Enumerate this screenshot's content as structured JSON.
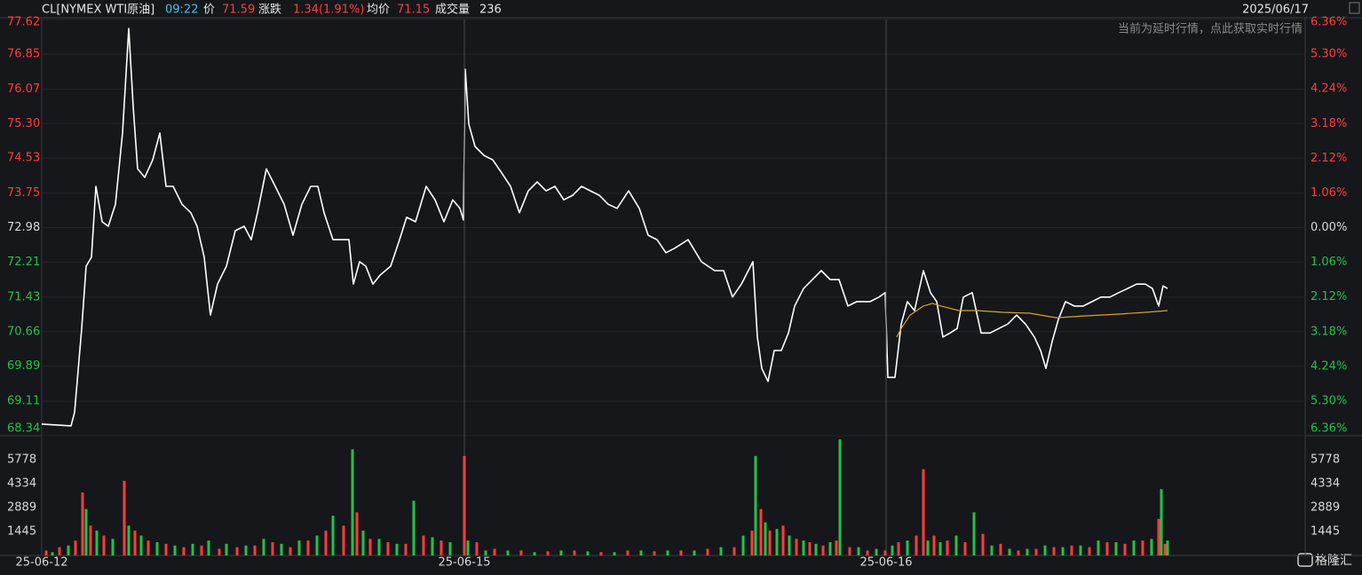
{
  "quote": {
    "symbol": "CL[NYMEX WTI原油]",
    "time": "09:22",
    "price_label": "价",
    "price": 71.59,
    "change_label": "涨跌",
    "change": "1.34(1.91%)",
    "avg_label": "均价",
    "avg": 71.15,
    "volume_label": "成交量",
    "volume": 236
  },
  "date": "2025/06/17",
  "notice": "当前为延时行情，点此获取实时行情",
  "logo": "格隆汇",
  "up_color": "#ff3c3c",
  "down_color": "#22c24a",
  "flat_color": "#d8d8d8",
  "chart_data": [
    {
      "type": "line",
      "xlim": [
        0,
        1423
      ],
      "ylim": [
        68.34,
        77.62
      ],
      "yticks": [
        77.62,
        76.85,
        76.07,
        {
          "value": 75.3,
          "label": "75.30"
        },
        74.53,
        73.75,
        72.98,
        72.21,
        71.43,
        70.66,
        69.89,
        69.11,
        68.34
      ],
      "y2lim": [
        -6.36,
        6.36
      ],
      "y2ticks": [
        {
          "value": 6.36,
          "label": "6.36%"
        },
        {
          "value": 5.3,
          "label": "5.30%"
        },
        {
          "value": 4.24,
          "label": "4.24%"
        },
        {
          "value": 3.18,
          "label": "3.18%"
        },
        {
          "value": 2.12,
          "label": "2.12%"
        },
        {
          "value": 1.06,
          "label": "1.06%"
        },
        {
          "value": 0,
          "label": "0.00%"
        },
        {
          "value": -1.06,
          "label": "1.06%"
        },
        {
          "value": -2.12,
          "label": "2.12%"
        },
        {
          "value": -3.18,
          "label": "3.18%"
        },
        {
          "value": -4.24,
          "label": "4.24%"
        },
        {
          "value": -5.3,
          "label": "5.30%"
        },
        {
          "value": -6.36,
          "label": "6.36%"
        }
      ],
      "grid": true,
      "series": [
        {
          "color": "#ffffff",
          "x": [
            0,
            33,
            37,
            45,
            50,
            56,
            61,
            68,
            75,
            83,
            91,
            98,
            103,
            108,
            116,
            125,
            133,
            140,
            148,
            158,
            168,
            175,
            183,
            190,
            198,
            208,
            218,
            228,
            236,
            243,
            253,
            263,
            273,
            283,
            293,
            303,
            311,
            318,
            328,
            338,
            346,
            351,
            358,
            365,
            373,
            381,
            393,
            403,
            411,
            421,
            433,
            443,
            453,
            463,
            471,
            475,
            477,
            481,
            488,
            498,
            508,
            518,
            528,
            538,
            548,
            558,
            568,
            578,
            588,
            598,
            608,
            618,
            628,
            638,
            648,
            661,
            673,
            683,
            693,
            703,
            713,
            728,
            743,
            758,
            768,
            778,
            788,
            801,
            806,
            811,
            818,
            825,
            833,
            841,
            848,
            858,
            868,
            878,
            888,
            898,
            908,
            918,
            933,
            943,
            950,
            953,
            961,
            968,
            975,
            983,
            993,
            1001,
            1008,
            1015,
            1023,
            1031,
            1038,
            1048,
            1058,
            1068,
            1078,
            1088,
            1098,
            1108,
            1118,
            1125,
            1131,
            1138,
            1145,
            1153,
            1163,
            1173,
            1183,
            1193,
            1203,
            1213,
            1223,
            1233,
            1243,
            1251,
            1258,
            1263,
            1268
          ],
          "values": [
            68.6,
            68.56,
            68.86,
            70.73,
            72.12,
            72.32,
            73.9,
            73.11,
            73.01,
            73.5,
            75.09,
            77.42,
            75.68,
            74.29,
            74.1,
            74.49,
            75.09,
            73.9,
            73.9,
            73.5,
            73.31,
            73.01,
            72.32,
            71.03,
            71.72,
            72.12,
            72.91,
            73.01,
            72.71,
            73.31,
            74.29,
            73.9,
            73.5,
            72.81,
            73.5,
            73.9,
            73.9,
            73.31,
            72.71,
            72.71,
            72.71,
            71.72,
            72.22,
            72.12,
            71.72,
            71.92,
            72.12,
            72.71,
            73.21,
            73.11,
            73.9,
            73.6,
            73.11,
            73.6,
            73.41,
            73.15,
            76.51,
            75.29,
            74.79,
            74.59,
            74.49,
            74.2,
            73.9,
            73.31,
            73.8,
            74.0,
            73.8,
            73.9,
            73.6,
            73.7,
            73.9,
            73.8,
            73.7,
            73.5,
            73.41,
            73.8,
            73.41,
            72.81,
            72.71,
            72.42,
            72.52,
            72.71,
            72.22,
            72.02,
            72.02,
            71.43,
            71.72,
            72.22,
            70.54,
            69.84,
            69.55,
            70.24,
            70.24,
            70.63,
            71.23,
            71.62,
            71.82,
            72.02,
            71.82,
            71.82,
            71.23,
            71.33,
            71.33,
            71.43,
            71.53,
            69.64,
            69.64,
            70.83,
            71.33,
            71.13,
            72.02,
            71.53,
            71.33,
            70.54,
            70.63,
            70.73,
            71.43,
            71.53,
            70.63,
            70.63,
            70.73,
            70.83,
            71.03,
            70.83,
            70.54,
            70.24,
            69.84,
            70.44,
            70.93,
            71.33,
            71.23,
            71.23,
            71.33,
            71.43,
            71.43,
            71.53,
            71.62,
            71.72,
            71.72,
            71.62,
            71.23,
            71.68,
            71.62
          ]
        },
        {
          "color": "#d9a32a",
          "x": [
            963,
            968,
            978,
            993,
            1003,
            1013,
            1033,
            1053,
            1083,
            1113,
            1143,
            1173,
            1213,
            1243,
            1268
          ],
          "values": [
            70.54,
            70.73,
            71.03,
            71.23,
            71.29,
            71.23,
            71.13,
            71.13,
            71.09,
            71.07,
            70.97,
            71.01,
            71.05,
            71.09,
            71.13
          ]
        }
      ]
    },
    {
      "type": "bar",
      "xlim": [
        0,
        1423
      ],
      "ylim": [
        0,
        7222
      ],
      "yticks": [
        1445,
        2889,
        4334,
        5778
      ],
      "xticks": [
        {
          "value": 0,
          "label": "25-06-12"
        },
        {
          "value": 476,
          "label": "25-06-15"
        },
        {
          "value": 951,
          "label": "25-06-16"
        }
      ],
      "series": [
        {
          "color": "#ff3c3c",
          "x": [
            5,
            20,
            38,
            46,
            55,
            70,
            93,
            105,
            120,
            140,
            160,
            180,
            200,
            220,
            240,
            260,
            280,
            300,
            320,
            340,
            355,
            370,
            390,
            410,
            430,
            450,
            476,
            490,
            510,
            540,
            570,
            600,
            630,
            660,
            690,
            720,
            750,
            780,
            800,
            810,
            820,
            835,
            850,
            865,
            880,
            895,
            910,
            930,
            950,
            965,
            985,
            993,
            1005,
            1020,
            1040,
            1060,
            1080,
            1100,
            1120,
            1140,
            1160,
            1180,
            1200,
            1220,
            1240,
            1258,
            1265
          ],
          "values": [
            300,
            500,
            900,
            3800,
            1800,
            1200,
            4500,
            1500,
            900,
            700,
            500,
            600,
            400,
            500,
            600,
            800,
            500,
            900,
            1500,
            1800,
            2600,
            1000,
            800,
            700,
            1200,
            900,
            6000,
            800,
            400,
            300,
            250,
            300,
            200,
            300,
            250,
            300,
            400,
            500,
            1500,
            2800,
            1500,
            1800,
            1000,
            800,
            600,
            900,
            500,
            300,
            300,
            800,
            1200,
            5200,
            1200,
            900,
            800,
            1300,
            700,
            300,
            400,
            500,
            600,
            500,
            800,
            700,
            900,
            2200,
            700
          ]
        },
        {
          "color": "#22c24a",
          "x": [
            12,
            30,
            50,
            62,
            80,
            98,
            112,
            130,
            150,
            170,
            188,
            208,
            230,
            250,
            270,
            290,
            310,
            328,
            350,
            362,
            380,
            400,
            419,
            440,
            460,
            480,
            500,
            525,
            555,
            585,
            615,
            645,
            675,
            705,
            735,
            765,
            790,
            804,
            815,
            828,
            842,
            858,
            872,
            888,
            899,
            920,
            940,
            958,
            975,
            998,
            1012,
            1030,
            1050,
            1070,
            1090,
            1110,
            1130,
            1150,
            1170,
            1190,
            1210,
            1230,
            1250,
            1261,
            1268
          ],
          "values": [
            200,
            600,
            2800,
            1500,
            1000,
            1800,
            1200,
            800,
            600,
            700,
            900,
            700,
            600,
            1000,
            700,
            900,
            1200,
            2400,
            6400,
            1500,
            1000,
            700,
            3300,
            1100,
            800,
            900,
            300,
            300,
            200,
            300,
            250,
            200,
            300,
            300,
            300,
            500,
            1200,
            6000,
            2000,
            1600,
            1200,
            900,
            700,
            800,
            7000,
            500,
            400,
            600,
            900,
            900,
            800,
            1200,
            2600,
            600,
            400,
            400,
            600,
            500,
            600,
            900,
            800,
            900,
            1000,
            4000,
            900
          ]
        }
      ]
    }
  ]
}
